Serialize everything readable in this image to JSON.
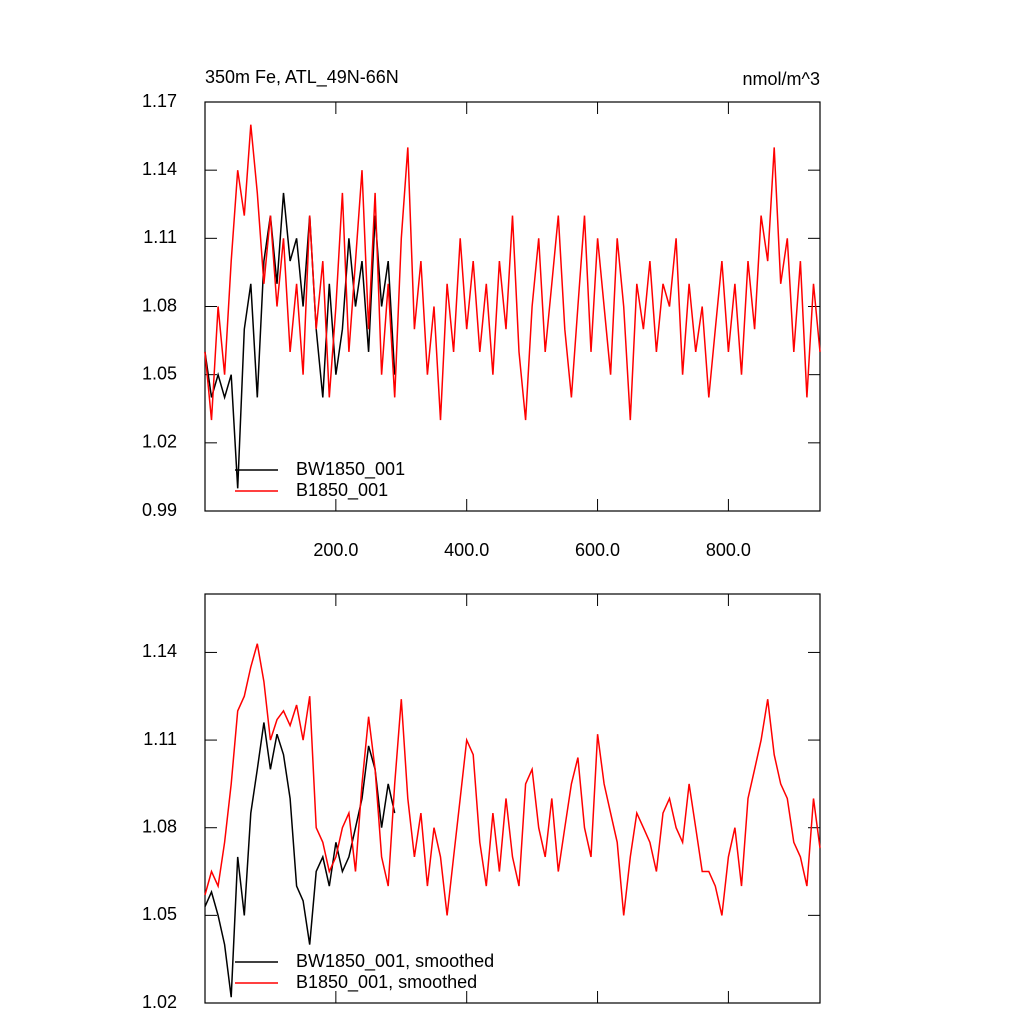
{
  "chart_data": [
    {
      "type": "line",
      "title": "350m Fe, ATL_49N-66N",
      "units": "nmol/m^3",
      "xlim": [
        0,
        940
      ],
      "ylim": [
        0.99,
        1.17
      ],
      "xticks": [
        {
          "value": 200,
          "label": "200.0"
        },
        {
          "value": 400,
          "label": "400.0"
        },
        {
          "value": 600,
          "label": "600.0"
        },
        {
          "value": 800,
          "label": "800.0"
        }
      ],
      "yticks": [
        0.99,
        1.02,
        1.05,
        1.08,
        1.11,
        1.14,
        1.17
      ],
      "legend": "lower-left",
      "series": [
        {
          "name": "BW1850_001",
          "color": "#000000",
          "x": [
            0,
            10,
            20,
            30,
            40,
            50,
            60,
            70,
            80,
            90,
            100,
            110,
            120,
            130,
            140,
            150,
            160,
            170,
            180,
            190,
            200,
            210,
            220,
            230,
            240,
            250,
            260,
            270,
            280,
            290
          ],
          "values": [
            1.06,
            1.04,
            1.05,
            1.04,
            1.05,
            1.0,
            1.07,
            1.09,
            1.04,
            1.1,
            1.12,
            1.09,
            1.13,
            1.1,
            1.11,
            1.08,
            1.12,
            1.07,
            1.04,
            1.09,
            1.05,
            1.07,
            1.11,
            1.08,
            1.1,
            1.06,
            1.12,
            1.08,
            1.1,
            1.05
          ]
        },
        {
          "name": "B1850_001",
          "color": "#ff0000",
          "x": [
            0,
            10,
            20,
            30,
            40,
            50,
            60,
            70,
            80,
            90,
            100,
            110,
            120,
            130,
            140,
            150,
            160,
            170,
            180,
            190,
            200,
            210,
            220,
            230,
            240,
            250,
            260,
            270,
            280,
            290,
            300,
            310,
            320,
            330,
            340,
            350,
            360,
            370,
            380,
            390,
            400,
            410,
            420,
            430,
            440,
            450,
            460,
            470,
            480,
            490,
            500,
            510,
            520,
            530,
            540,
            550,
            560,
            570,
            580,
            590,
            600,
            610,
            620,
            630,
            640,
            650,
            660,
            670,
            680,
            690,
            700,
            710,
            720,
            730,
            740,
            750,
            760,
            770,
            780,
            790,
            800,
            810,
            820,
            830,
            840,
            850,
            860,
            870,
            880,
            890,
            900,
            910,
            920,
            930,
            940
          ],
          "values": [
            1.06,
            1.03,
            1.08,
            1.05,
            1.1,
            1.14,
            1.12,
            1.16,
            1.13,
            1.09,
            1.12,
            1.08,
            1.11,
            1.06,
            1.09,
            1.05,
            1.12,
            1.07,
            1.1,
            1.04,
            1.08,
            1.13,
            1.06,
            1.1,
            1.14,
            1.07,
            1.13,
            1.05,
            1.09,
            1.04,
            1.11,
            1.15,
            1.07,
            1.1,
            1.05,
            1.08,
            1.03,
            1.09,
            1.06,
            1.11,
            1.07,
            1.1,
            1.06,
            1.09,
            1.05,
            1.1,
            1.07,
            1.12,
            1.06,
            1.03,
            1.08,
            1.11,
            1.06,
            1.09,
            1.12,
            1.07,
            1.04,
            1.08,
            1.12,
            1.06,
            1.11,
            1.08,
            1.05,
            1.11,
            1.08,
            1.03,
            1.09,
            1.07,
            1.1,
            1.06,
            1.09,
            1.08,
            1.11,
            1.05,
            1.09,
            1.06,
            1.08,
            1.04,
            1.07,
            1.1,
            1.06,
            1.09,
            1.05,
            1.1,
            1.07,
            1.12,
            1.1,
            1.15,
            1.09,
            1.11,
            1.06,
            1.1,
            1.04,
            1.09,
            1.06
          ]
        }
      ]
    },
    {
      "type": "line",
      "xlim": [
        0,
        940
      ],
      "ylim": [
        1.02,
        1.16
      ],
      "xticks": [
        200,
        400,
        600,
        800
      ],
      "yticks": [
        1.02,
        1.05,
        1.08,
        1.11,
        1.14
      ],
      "legend": "lower-left",
      "series": [
        {
          "name": "BW1850_001, smoothed",
          "color": "#000000",
          "x": [
            0,
            10,
            20,
            30,
            40,
            50,
            60,
            70,
            80,
            90,
            100,
            110,
            120,
            130,
            140,
            150,
            160,
            170,
            180,
            190,
            200,
            210,
            220,
            230,
            240,
            250,
            260,
            270,
            280,
            290
          ],
          "values": [
            1.053,
            1.058,
            1.05,
            1.04,
            1.022,
            1.07,
            1.05,
            1.085,
            1.1,
            1.116,
            1.1,
            1.112,
            1.105,
            1.09,
            1.06,
            1.055,
            1.04,
            1.065,
            1.07,
            1.06,
            1.075,
            1.065,
            1.07,
            1.08,
            1.09,
            1.108,
            1.1,
            1.08,
            1.095,
            1.085
          ]
        },
        {
          "name": "B1850_001, smoothed",
          "color": "#ff0000",
          "x": [
            0,
            10,
            20,
            30,
            40,
            50,
            60,
            70,
            80,
            90,
            100,
            110,
            120,
            130,
            140,
            150,
            160,
            170,
            180,
            190,
            200,
            210,
            220,
            230,
            240,
            250,
            260,
            270,
            280,
            290,
            300,
            310,
            320,
            330,
            340,
            350,
            360,
            370,
            380,
            390,
            400,
            410,
            420,
            430,
            440,
            450,
            460,
            470,
            480,
            490,
            500,
            510,
            520,
            530,
            540,
            550,
            560,
            570,
            580,
            590,
            600,
            610,
            620,
            630,
            640,
            650,
            660,
            670,
            680,
            690,
            700,
            710,
            720,
            730,
            740,
            750,
            760,
            770,
            780,
            790,
            800,
            810,
            820,
            830,
            840,
            850,
            860,
            870,
            880,
            890,
            900,
            910,
            920,
            930,
            940
          ],
          "values": [
            1.057,
            1.065,
            1.06,
            1.075,
            1.095,
            1.12,
            1.125,
            1.135,
            1.143,
            1.13,
            1.11,
            1.117,
            1.12,
            1.115,
            1.122,
            1.11,
            1.125,
            1.08,
            1.075,
            1.065,
            1.07,
            1.08,
            1.085,
            1.065,
            1.095,
            1.118,
            1.1,
            1.07,
            1.06,
            1.095,
            1.124,
            1.09,
            1.07,
            1.085,
            1.06,
            1.08,
            1.07,
            1.05,
            1.07,
            1.09,
            1.11,
            1.105,
            1.075,
            1.06,
            1.085,
            1.065,
            1.09,
            1.07,
            1.06,
            1.095,
            1.1,
            1.08,
            1.07,
            1.09,
            1.065,
            1.08,
            1.095,
            1.104,
            1.08,
            1.07,
            1.112,
            1.095,
            1.085,
            1.075,
            1.05,
            1.07,
            1.085,
            1.08,
            1.075,
            1.065,
            1.085,
            1.09,
            1.08,
            1.075,
            1.095,
            1.08,
            1.065,
            1.065,
            1.06,
            1.05,
            1.07,
            1.08,
            1.06,
            1.09,
            1.1,
            1.11,
            1.124,
            1.105,
            1.095,
            1.09,
            1.075,
            1.07,
            1.06,
            1.09,
            1.073
          ]
        }
      ]
    }
  ]
}
